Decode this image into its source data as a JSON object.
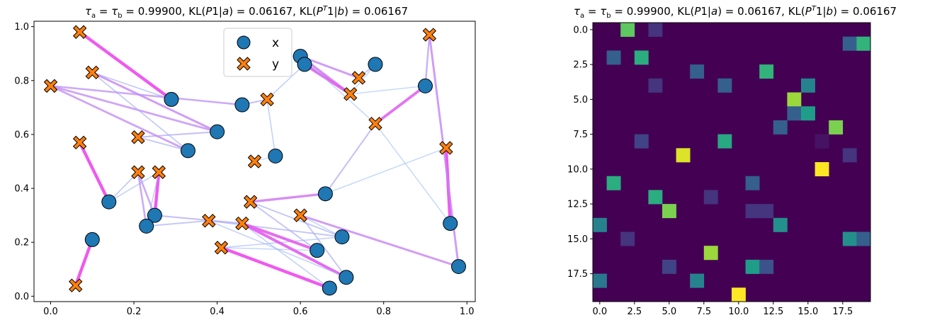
{
  "figure": {
    "title_left": "τa = τb = 0.99900, KL(P1|a) = 0.06167, KL(PT1|b) = 0.06167",
    "title_right": "τa = τb = 0.99900, KL(P1|a) = 0.06167, KL(PT1|b) = 0.06167"
  },
  "chart_data": [
    {
      "type": "scatter",
      "title": "τa = τb = 0.99900, KL(P1|a) = 0.06167, KL(PT1|b) = 0.06167",
      "xlim": [
        -0.04,
        1.02
      ],
      "ylim": [
        -0.02,
        1.02
      ],
      "xticks": [
        0.0,
        0.2,
        0.4,
        0.6,
        0.8,
        1.0
      ],
      "yticks": [
        0.0,
        0.2,
        0.4,
        0.6,
        0.8,
        1.0
      ],
      "legend": {
        "position": "top-center",
        "entries": [
          "x",
          "y"
        ]
      },
      "series": [
        {
          "name": "x",
          "marker": "circle",
          "color": "#1f77b4",
          "points": [
            [
              0.29,
              0.73
            ],
            [
              0.4,
              0.61
            ],
            [
              0.33,
              0.54
            ],
            [
              0.14,
              0.35
            ],
            [
              0.25,
              0.3
            ],
            [
              0.23,
              0.26
            ],
            [
              0.1,
              0.21
            ],
            [
              0.46,
              0.71
            ],
            [
              0.54,
              0.52
            ],
            [
              0.6,
              0.89
            ],
            [
              0.61,
              0.86
            ],
            [
              0.78,
              0.86
            ],
            [
              0.9,
              0.78
            ],
            [
              0.66,
              0.38
            ],
            [
              0.7,
              0.22
            ],
            [
              0.64,
              0.17
            ],
            [
              0.71,
              0.07
            ],
            [
              0.67,
              0.03
            ],
            [
              0.96,
              0.27
            ],
            [
              0.98,
              0.11
            ]
          ]
        },
        {
          "name": "y",
          "marker": "X",
          "color": "#ff7f0e",
          "points": [
            [
              0.07,
              0.98
            ],
            [
              0.1,
              0.83
            ],
            [
              0.0,
              0.78
            ],
            [
              0.21,
              0.59
            ],
            [
              0.07,
              0.57
            ],
            [
              0.21,
              0.46
            ],
            [
              0.26,
              0.46
            ],
            [
              0.06,
              0.04
            ],
            [
              0.52,
              0.73
            ],
            [
              0.49,
              0.5
            ],
            [
              0.72,
              0.75
            ],
            [
              0.74,
              0.81
            ],
            [
              0.78,
              0.64
            ],
            [
              0.91,
              0.97
            ],
            [
              0.95,
              0.55
            ],
            [
              0.48,
              0.35
            ],
            [
              0.6,
              0.3
            ],
            [
              0.38,
              0.28
            ],
            [
              0.46,
              0.27
            ],
            [
              0.41,
              0.18
            ]
          ]
        }
      ],
      "links": [
        [
          0,
          0,
          1.0
        ],
        [
          0,
          1,
          0.25
        ],
        [
          1,
          1,
          0.6
        ],
        [
          1,
          2,
          0.55
        ],
        [
          1,
          3,
          0.35
        ],
        [
          2,
          3,
          0.3
        ],
        [
          2,
          2,
          0.55
        ],
        [
          2,
          1,
          0.25
        ],
        [
          3,
          4,
          1.0
        ],
        [
          3,
          5,
          0.25
        ],
        [
          3,
          6,
          0.2
        ],
        [
          4,
          6,
          1.0
        ],
        [
          4,
          5,
          0.5
        ],
        [
          5,
          5,
          0.5
        ],
        [
          5,
          17,
          0.3
        ],
        [
          6,
          7,
          1.0
        ],
        [
          7,
          8,
          0.35
        ],
        [
          7,
          2,
          0.5
        ],
        [
          8,
          9,
          0.1
        ],
        [
          8,
          8,
          0.2
        ],
        [
          9,
          10,
          0.7
        ],
        [
          10,
          10,
          0.9
        ],
        [
          10,
          8,
          0.2
        ],
        [
          9,
          11,
          0.6
        ],
        [
          9,
          12,
          0.15
        ],
        [
          11,
          11,
          0.3
        ],
        [
          11,
          10,
          0.15
        ],
        [
          12,
          13,
          0.45
        ],
        [
          12,
          12,
          0.85
        ],
        [
          12,
          10,
          0.15
        ],
        [
          13,
          15,
          0.7
        ],
        [
          13,
          12,
          0.35
        ],
        [
          13,
          14,
          0.15
        ],
        [
          14,
          19,
          0.2
        ],
        [
          14,
          17,
          0.3
        ],
        [
          14,
          16,
          0.15
        ],
        [
          15,
          18,
          0.9
        ],
        [
          15,
          15,
          0.3
        ],
        [
          15,
          19,
          0.15
        ],
        [
          16,
          18,
          0.9
        ],
        [
          16,
          16,
          0.3
        ],
        [
          16,
          17,
          0.2
        ],
        [
          17,
          19,
          1.0
        ],
        [
          17,
          18,
          0.2
        ],
        [
          18,
          14,
          1.0
        ],
        [
          18,
          12,
          0.15
        ],
        [
          19,
          16,
          0.6
        ],
        [
          19,
          13,
          0.6
        ],
        [
          4,
          18,
          0.35
        ],
        [
          5,
          6,
          0.2
        ],
        [
          14,
          15,
          0.3
        ]
      ]
    },
    {
      "type": "heatmap",
      "title": "τa = τb = 0.99900, KL(P1|a) = 0.06167, KL(PT1|b) = 0.06167",
      "colormap": "viridis",
      "rows": 20,
      "cols": 20,
      "xticks": [
        0.0,
        2.5,
        5.0,
        7.5,
        10.0,
        12.5,
        15.0,
        17.5
      ],
      "yticks": [
        0.0,
        2.5,
        5.0,
        7.5,
        10.0,
        12.5,
        15.0,
        17.5
      ],
      "cells": [
        [
          0,
          2,
          0.75
        ],
        [
          0,
          4,
          0.15
        ],
        [
          1,
          18,
          0.3
        ],
        [
          1,
          19,
          0.65
        ],
        [
          2,
          1,
          0.3
        ],
        [
          2,
          3,
          0.62
        ],
        [
          3,
          7,
          0.3
        ],
        [
          3,
          12,
          0.65
        ],
        [
          4,
          4,
          0.15
        ],
        [
          4,
          9,
          0.3
        ],
        [
          4,
          15,
          0.45
        ],
        [
          5,
          14,
          0.85
        ],
        [
          6,
          14,
          0.3
        ],
        [
          6,
          15,
          0.55
        ],
        [
          7,
          13,
          0.3
        ],
        [
          7,
          17,
          0.8
        ],
        [
          8,
          3,
          0.2
        ],
        [
          8,
          9,
          0.6
        ],
        [
          8,
          16,
          0.05
        ],
        [
          9,
          6,
          0.95
        ],
        [
          9,
          18,
          0.15
        ],
        [
          10,
          16,
          1.0
        ],
        [
          11,
          1,
          0.62
        ],
        [
          11,
          11,
          0.3
        ],
        [
          12,
          4,
          0.62
        ],
        [
          12,
          8,
          0.15
        ],
        [
          13,
          5,
          0.8
        ],
        [
          13,
          11,
          0.15
        ],
        [
          13,
          12,
          0.15
        ],
        [
          14,
          0,
          0.45
        ],
        [
          14,
          13,
          0.5
        ],
        [
          15,
          2,
          0.15
        ],
        [
          15,
          18,
          0.5
        ],
        [
          15,
          19,
          0.3
        ],
        [
          16,
          8,
          0.85
        ],
        [
          17,
          5,
          0.2
        ],
        [
          17,
          11,
          0.55
        ],
        [
          17,
          12,
          0.25
        ],
        [
          18,
          0,
          0.4
        ],
        [
          18,
          7,
          0.45
        ],
        [
          19,
          10,
          1.0
        ]
      ]
    }
  ]
}
